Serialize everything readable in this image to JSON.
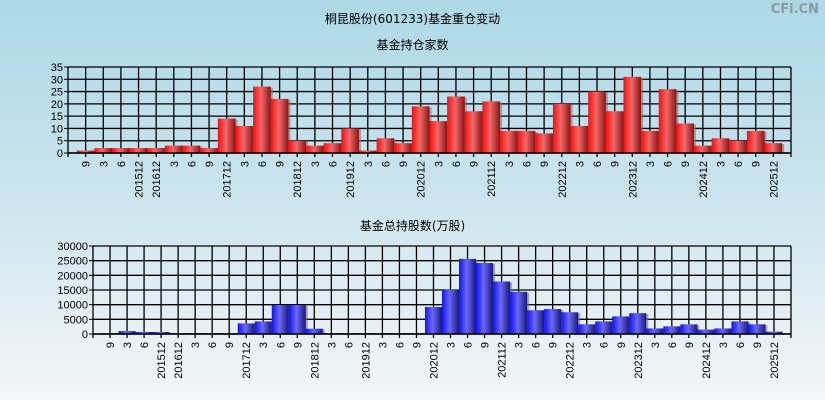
{
  "title": "桐昆股份(601233)基金重仓变动",
  "watermark": "CFi.CN",
  "colors": {
    "top_bars": "#ff2a2a",
    "bottom_bars": "#3333ff",
    "grid": "#000000"
  },
  "chart_data": [
    {
      "type": "bar",
      "title": "基金持仓家数",
      "categories": [
        "9",
        "3",
        "6",
        "201512",
        "201612",
        "3",
        "6",
        "9",
        "201712",
        "3",
        "6",
        "9",
        "201812",
        "3",
        "6",
        "201912",
        "3",
        "6",
        "9",
        "202012",
        "3",
        "6",
        "9",
        "202112",
        "3",
        "6",
        "9",
        "202212",
        "3",
        "6",
        "9",
        "202312",
        "3",
        "6",
        "9",
        "202412",
        "3",
        "6",
        "9",
        "202512"
      ],
      "values": [
        1,
        2,
        2,
        2,
        2,
        3,
        3,
        2,
        14,
        11,
        27,
        22,
        5,
        3,
        4,
        10,
        1,
        6,
        4,
        19,
        13,
        23,
        17,
        21,
        9,
        9,
        8,
        20,
        11,
        25,
        17,
        31,
        9,
        26,
        12,
        3,
        6,
        5,
        9,
        4
      ],
      "ylim": [
        0,
        35
      ],
      "yticks": [
        0,
        5,
        10,
        15,
        20,
        25,
        30,
        35
      ],
      "grid": true
    },
    {
      "type": "bar",
      "title": "基金总持股数(万股)",
      "categories": [
        "9",
        "3",
        "6",
        "201512",
        "201612",
        "3",
        "6",
        "9",
        "201712",
        "3",
        "6",
        "9",
        "201812",
        "3",
        "6",
        "201912",
        "3",
        "6",
        "9",
        "202012",
        "3",
        "6",
        "9",
        "202112",
        "3",
        "6",
        "9",
        "202212",
        "3",
        "6",
        "9",
        "202312",
        "3",
        "6",
        "9",
        "202412",
        "3",
        "6",
        "9",
        "202512"
      ],
      "values": [
        300,
        1000,
        700,
        700,
        300,
        300,
        300,
        300,
        3600,
        4300,
        9900,
        9900,
        1800,
        300,
        300,
        300,
        300,
        300,
        300,
        9200,
        15100,
        25600,
        24200,
        17900,
        14400,
        8100,
        8500,
        7400,
        3300,
        4300,
        6000,
        7100,
        1900,
        2600,
        3300,
        1500,
        1900,
        4300,
        3300,
        800
      ],
      "ylim": [
        0,
        30000
      ],
      "yticks": [
        0,
        5000,
        10000,
        15000,
        20000,
        25000,
        30000
      ],
      "grid": true
    }
  ]
}
